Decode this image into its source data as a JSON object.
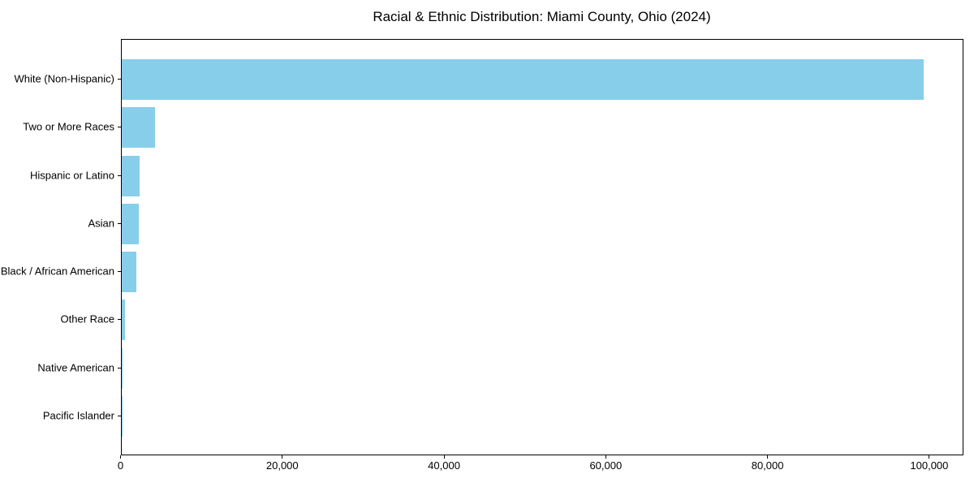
{
  "chart_data": {
    "type": "bar",
    "orientation": "horizontal",
    "title": "Racial & Ethnic Distribution: Miami County, Ohio (2024)",
    "categories": [
      "White (Non-Hispanic)",
      "Two or More Races",
      "Hispanic or Latino",
      "Asian",
      "Black / African American",
      "Other Race",
      "Native American",
      "Pacific Islander"
    ],
    "values": [
      99200,
      4200,
      2300,
      2150,
      1900,
      420,
      100,
      35
    ],
    "bar_color": "#87CEEB",
    "xlabel": "",
    "ylabel": "",
    "xlim": [
      0,
      104175
    ],
    "xticks": {
      "values": [
        0,
        20000,
        40000,
        60000,
        80000,
        100000
      ],
      "labels": [
        "0",
        "20,000",
        "40,000",
        "60,000",
        "80,000",
        "100,000"
      ]
    },
    "grid": false,
    "legend": false,
    "background": "#ffffff",
    "spine_color": "#000000"
  }
}
